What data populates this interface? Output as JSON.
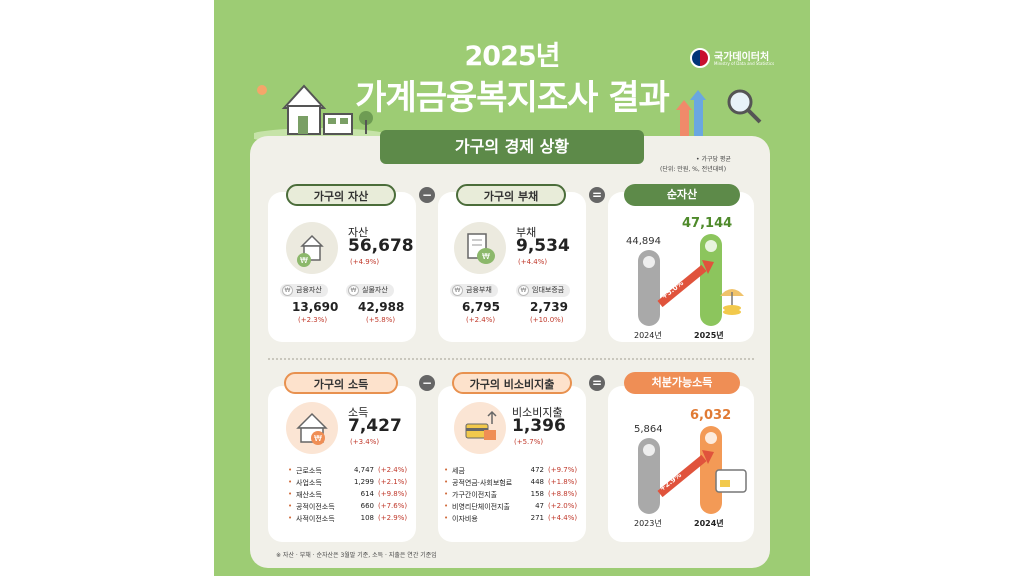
{
  "header": {
    "year": "2025년",
    "title": "가계금융복지조사 결과",
    "logo": {
      "name": "국가데이터처",
      "subtitle": "Ministry of Data and Statistics"
    }
  },
  "section_title": "가구의 경제 상황",
  "unit_note": {
    "line1": "• 가구당 평균",
    "line2": "(단위: 만원, %, 전년대비)"
  },
  "operators": {
    "minus": "−",
    "equals": "="
  },
  "assets": {
    "pill": "가구의 자산",
    "label": "자산",
    "value": "56,678",
    "change": "(+4.9%)",
    "sub": [
      {
        "label": "금융자산",
        "value": "13,690",
        "change": "(+2.3%)"
      },
      {
        "label": "실물자산",
        "value": "42,988",
        "change": "(+5.8%)"
      }
    ]
  },
  "debt": {
    "pill": "가구의 부채",
    "label": "부채",
    "value": "9,534",
    "change": "(+4.4%)",
    "sub": [
      {
        "label": "금융부채",
        "value": "6,795",
        "change": "(+2.4%)"
      },
      {
        "label": "임대보증금",
        "value": "2,739",
        "change": "(+10.0%)"
      }
    ]
  },
  "net_assets": {
    "pill": "순자산",
    "bars": [
      {
        "year": "2024년",
        "value": "44,894"
      },
      {
        "year": "2025년",
        "value": "47,144"
      }
    ],
    "growth": "+5.0%"
  },
  "income": {
    "pill": "가구의 소득",
    "label": "소득",
    "value": "7,427",
    "change": "(+3.4%)",
    "items": [
      {
        "name": "근로소득",
        "value": "4,747",
        "change": "(+2.4%)"
      },
      {
        "name": "사업소득",
        "value": "1,299",
        "change": "(+2.1%)"
      },
      {
        "name": "재산소득",
        "value": "614",
        "change": "(+9.8%)"
      },
      {
        "name": "공적이전소득",
        "value": "660",
        "change": "(+7.6%)"
      },
      {
        "name": "사적이전소득",
        "value": "108",
        "change": "(+2.9%)"
      }
    ]
  },
  "nonconsumption": {
    "pill": "가구의 비소비지출",
    "label": "비소비지출",
    "value": "1,396",
    "change": "(+5.7%)",
    "items": [
      {
        "name": "세금",
        "value": "472",
        "change": "(+9.7%)"
      },
      {
        "name": "공적연금·사회보험료",
        "value": "448",
        "change": "(+1.8%)"
      },
      {
        "name": "가구간이전지출",
        "value": "158",
        "change": "(+8.8%)"
      },
      {
        "name": "비영리단체이전지출",
        "value": "47",
        "change": "(+2.0%)"
      },
      {
        "name": "이자비용",
        "value": "271",
        "change": "(+4.4%)"
      }
    ]
  },
  "disposable": {
    "pill": "처분가능소득",
    "bars": [
      {
        "year": "2023년",
        "value": "5,864"
      },
      {
        "year": "2024년",
        "value": "6,032"
      }
    ],
    "growth": "+2.9%"
  },
  "footnote": "※ 자산 · 부채 · 순자산은 3월말 기준, 소득 · 지출은 연간 기준임",
  "colors": {
    "green": "#9dcc74",
    "dark_green": "#5d8a49",
    "orange": "#ef8e55",
    "red": "#c0392b"
  },
  "icons": [
    "house-icon",
    "won-coin-icon",
    "debt-document-icon",
    "money-bag-icon",
    "income-house-icon",
    "card-gift-icon",
    "arrow-up-icon",
    "umbrella-icon",
    "magnifier-icon",
    "credit-card-icon"
  ]
}
